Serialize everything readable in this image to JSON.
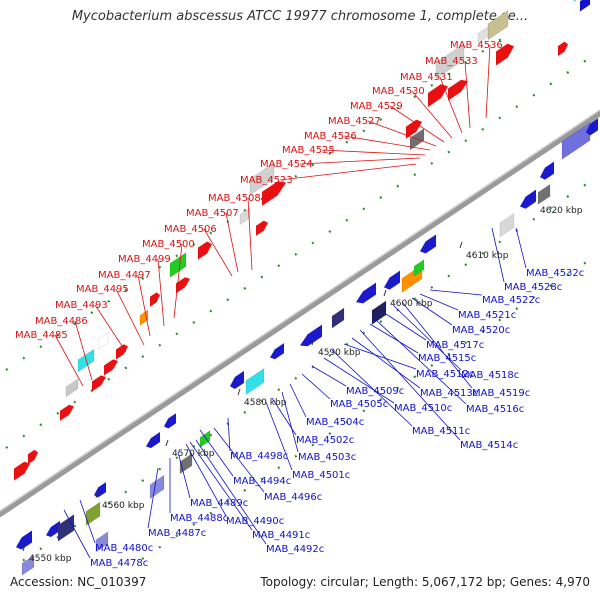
{
  "title": "Mycobacterium abscessus ATCC 19977 chromosome 1, complete se...",
  "accession": "Accession: NC_010397",
  "summary": "Topology: circular; Length: 5,067,172 bp; Genes: 4,970",
  "colors": {
    "plus_label": "#dd1111",
    "minus_label": "#1111cc",
    "backbone": "#8a8a8a",
    "tick": "#228822"
  },
  "kbp_ticks": [
    "4550 kbp",
    "4560 kbp",
    "4570 kbp",
    "4580 kbp",
    "4590 kbp",
    "4600 kbp",
    "4610 kbp",
    "4620 kbp"
  ],
  "plus_strand_labels": [
    "MAB_4485",
    "MAB_4486",
    "MAB_4493",
    "MAB_4495",
    "MAB_4497",
    "MAB_4499",
    "MAB_4500",
    "MAB_4506",
    "MAB_4507",
    "MAB_4508",
    "MAB_4523",
    "MAB_4524",
    "MAB_4525",
    "MAB_4526",
    "MAB_4527",
    "MAB_4529",
    "MAB_4530",
    "MAB_4531",
    "MAB_4533",
    "MAB_4536"
  ],
  "minus_strand_labels": [
    "MAB_4478c",
    "MAB_4480c",
    "MAB_4487c",
    "MAB_4488c",
    "MAB_4489c",
    "MAB_4490c",
    "MAB_4491c",
    "MAB_4492c",
    "MAB_4494c",
    "MAB_4496c",
    "MAB_4498c",
    "MAB_4501c",
    "MAB_4502c",
    "MAB_4503c",
    "MAB_4504c",
    "MAB_4505c",
    "MAB_4509c",
    "MAB_4510c",
    "MAB_4511c",
    "MAB_4512c",
    "MAB_4513c",
    "MAB_4514c",
    "MAB_4515c",
    "MAB_4516c",
    "MAB_4517c",
    "MAB_4518c",
    "MAB_4519c",
    "MAB_4520c",
    "MAB_4521c",
    "MAB_4522c",
    "MAB_4528c",
    "MAB_4532c"
  ]
}
